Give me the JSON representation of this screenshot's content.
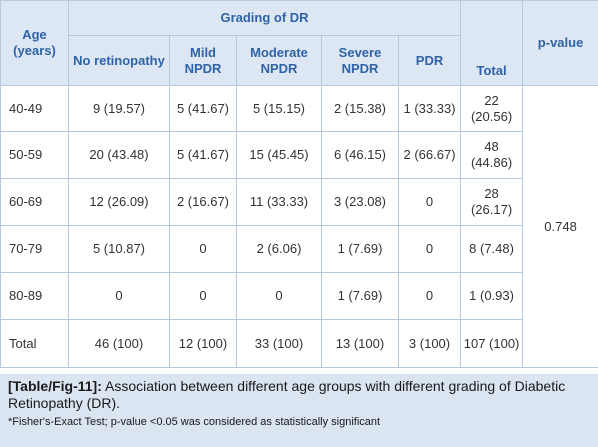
{
  "header": {
    "age": "Age (years)",
    "grading_group": "Grading of DR",
    "total": "Total",
    "p_value": "p-value",
    "grades": [
      "No retinopathy",
      "Mild NPDR",
      "Moderate NPDR",
      "Severe NPDR",
      "PDR"
    ]
  },
  "rows": [
    {
      "age": "40-49",
      "cells": [
        "9 (19.57)",
        "5 (41.67)",
        "5 (15.15)",
        "2 (15.38)",
        "1 (33.33)",
        "22 (20.56)"
      ]
    },
    {
      "age": "50-59",
      "cells": [
        "20 (43.48)",
        "5 (41.67)",
        "15 (45.45)",
        "6 (46.15)",
        "2 (66.67)",
        "48 (44.86)"
      ]
    },
    {
      "age": "60-69",
      "cells": [
        "12 (26.09)",
        "2 (16.67)",
        "11 (33.33)",
        "3 (23.08)",
        "0",
        "28 (26.17)"
      ]
    },
    {
      "age": "70-79",
      "cells": [
        "5 (10.87)",
        "0",
        "2 (6.06)",
        "1 (7.69)",
        "0",
        "8 (7.48)"
      ]
    },
    {
      "age": "80-89",
      "cells": [
        "0",
        "0",
        "0",
        "1 (7.69)",
        "0",
        "1 (0.93)"
      ]
    },
    {
      "age": "Total",
      "cells": [
        "46 (100)",
        "12 (100)",
        "33 (100)",
        "13 (100)",
        "3 (100)",
        "107 (100)"
      ]
    }
  ],
  "p_value": "0.748",
  "caption": {
    "tag": "[Table/Fig-11]:",
    "text": " Association between different age groups with different grading of Diabetic Retinopathy (DR).",
    "note": "*Fisher's-Exact Test; p-value <0.05 was considered as statistically significant"
  }
}
